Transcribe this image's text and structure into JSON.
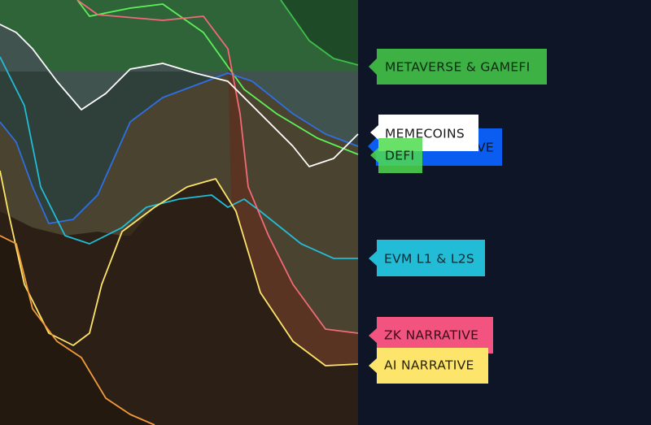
{
  "labels": [
    {
      "text": "METAVERSE & GAMEFI"
    },
    {
      "text": "VE"
    },
    {
      "text": "MEMECOINS"
    },
    {
      "text": "DEFI"
    },
    {
      "text": "EVM L1 & L2S"
    },
    {
      "text": "ZK NARRATIVE"
    },
    {
      "text": "AI NARRATIVE"
    }
  ]
}
